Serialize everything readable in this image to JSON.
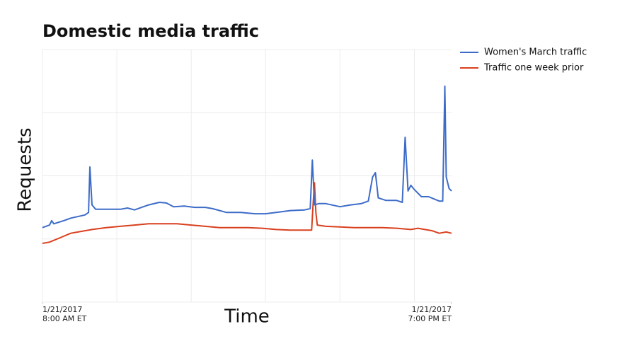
{
  "chart_data": {
    "type": "line",
    "title": "Domestic media traffic",
    "xlabel": "Time",
    "ylabel": "Requests",
    "xlim": [
      8,
      19
    ],
    "ylim": [
      0,
      4
    ],
    "xticks": [
      {
        "value": 8,
        "label": "1/21/2017\n8:00 AM ET"
      },
      {
        "value": 19,
        "label": "1/21/2017\n7:00 PM ET"
      }
    ],
    "xgrid": [
      8,
      10,
      12,
      14,
      16,
      18
    ],
    "ygrid": [
      0,
      1,
      2,
      3,
      4
    ],
    "grid": true,
    "legend": "right",
    "series": [
      {
        "name": "Women's March traffic",
        "color": "#3d6cc8",
        "x": [
          8.0,
          8.19,
          8.248,
          8.305,
          8.571,
          8.762,
          9.143,
          9.238,
          9.276,
          9.333,
          9.429,
          9.714,
          10.095,
          10.286,
          10.476,
          10.667,
          10.857,
          11.143,
          11.333,
          11.524,
          11.81,
          12.095,
          12.381,
          12.571,
          12.952,
          13.333,
          13.714,
          14.0,
          14.286,
          14.667,
          15.048,
          15.2,
          15.257,
          15.314,
          15.429,
          15.619,
          16.0,
          16.286,
          16.571,
          16.762,
          16.876,
          16.952,
          17.029,
          17.238,
          17.524,
          17.676,
          17.752,
          17.829,
          17.905,
          18.0,
          18.19,
          18.381,
          18.667,
          18.762,
          18.819,
          18.857,
          18.933,
          19.0
        ],
        "values": [
          1.18,
          1.22,
          1.29,
          1.24,
          1.29,
          1.33,
          1.38,
          1.42,
          2.14,
          1.54,
          1.47,
          1.47,
          1.47,
          1.49,
          1.46,
          1.5,
          1.54,
          1.58,
          1.57,
          1.51,
          1.52,
          1.5,
          1.5,
          1.48,
          1.42,
          1.42,
          1.4,
          1.4,
          1.42,
          1.45,
          1.46,
          1.48,
          2.25,
          1.54,
          1.56,
          1.56,
          1.51,
          1.54,
          1.56,
          1.6,
          1.98,
          2.05,
          1.65,
          1.61,
          1.61,
          1.58,
          2.61,
          1.76,
          1.85,
          1.78,
          1.67,
          1.67,
          1.6,
          1.6,
          3.42,
          1.98,
          1.8,
          1.76
        ]
      },
      {
        "name": "Traffic one week prior",
        "color": "#d9401e",
        "x": [
          8.0,
          8.19,
          8.476,
          8.762,
          9.048,
          9.333,
          9.714,
          10.095,
          10.476,
          10.857,
          11.238,
          11.619,
          12.0,
          12.381,
          12.762,
          13.143,
          13.524,
          13.905,
          14.286,
          14.667,
          15.048,
          15.238,
          15.276,
          15.314,
          15.352,
          15.39,
          15.619,
          16.0,
          16.381,
          16.762,
          17.143,
          17.524,
          17.905,
          18.095,
          18.286,
          18.476,
          18.667,
          18.857,
          19.0
        ],
        "values": [
          0.93,
          0.95,
          1.02,
          1.09,
          1.12,
          1.15,
          1.18,
          1.2,
          1.22,
          1.24,
          1.24,
          1.24,
          1.22,
          1.2,
          1.18,
          1.18,
          1.18,
          1.17,
          1.15,
          1.14,
          1.14,
          1.14,
          1.54,
          1.89,
          1.42,
          1.22,
          1.2,
          1.19,
          1.18,
          1.18,
          1.18,
          1.17,
          1.15,
          1.17,
          1.15,
          1.13,
          1.09,
          1.11,
          1.09
        ]
      }
    ]
  }
}
